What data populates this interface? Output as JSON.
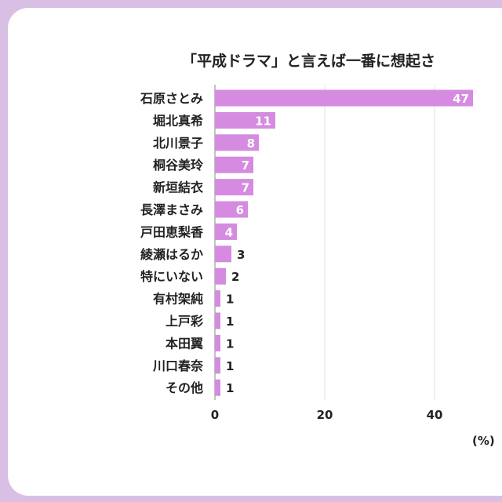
{
  "chart_data": {
    "type": "bar",
    "orientation": "horizontal",
    "title": "「平成ドラマ」と言えば一番に想起さ",
    "categories": [
      "石原さとみ",
      "堀北真希",
      "北川景子",
      "桐谷美玲",
      "新垣結衣",
      "長澤まさみ",
      "戸田恵梨香",
      "綾瀬はるか",
      "特にいない",
      "有村架純",
      "上戸彩",
      "本田翼",
      "川口春奈",
      "その他"
    ],
    "values": [
      47,
      11,
      8,
      7,
      7,
      6,
      4,
      3,
      2,
      1,
      1,
      1,
      1,
      1
    ],
    "xticks": [
      "0",
      "20",
      "40"
    ],
    "xlim": [
      0,
      55
    ],
    "unit_label": "(%)",
    "grid": true,
    "bar_color": "#d48be0"
  }
}
